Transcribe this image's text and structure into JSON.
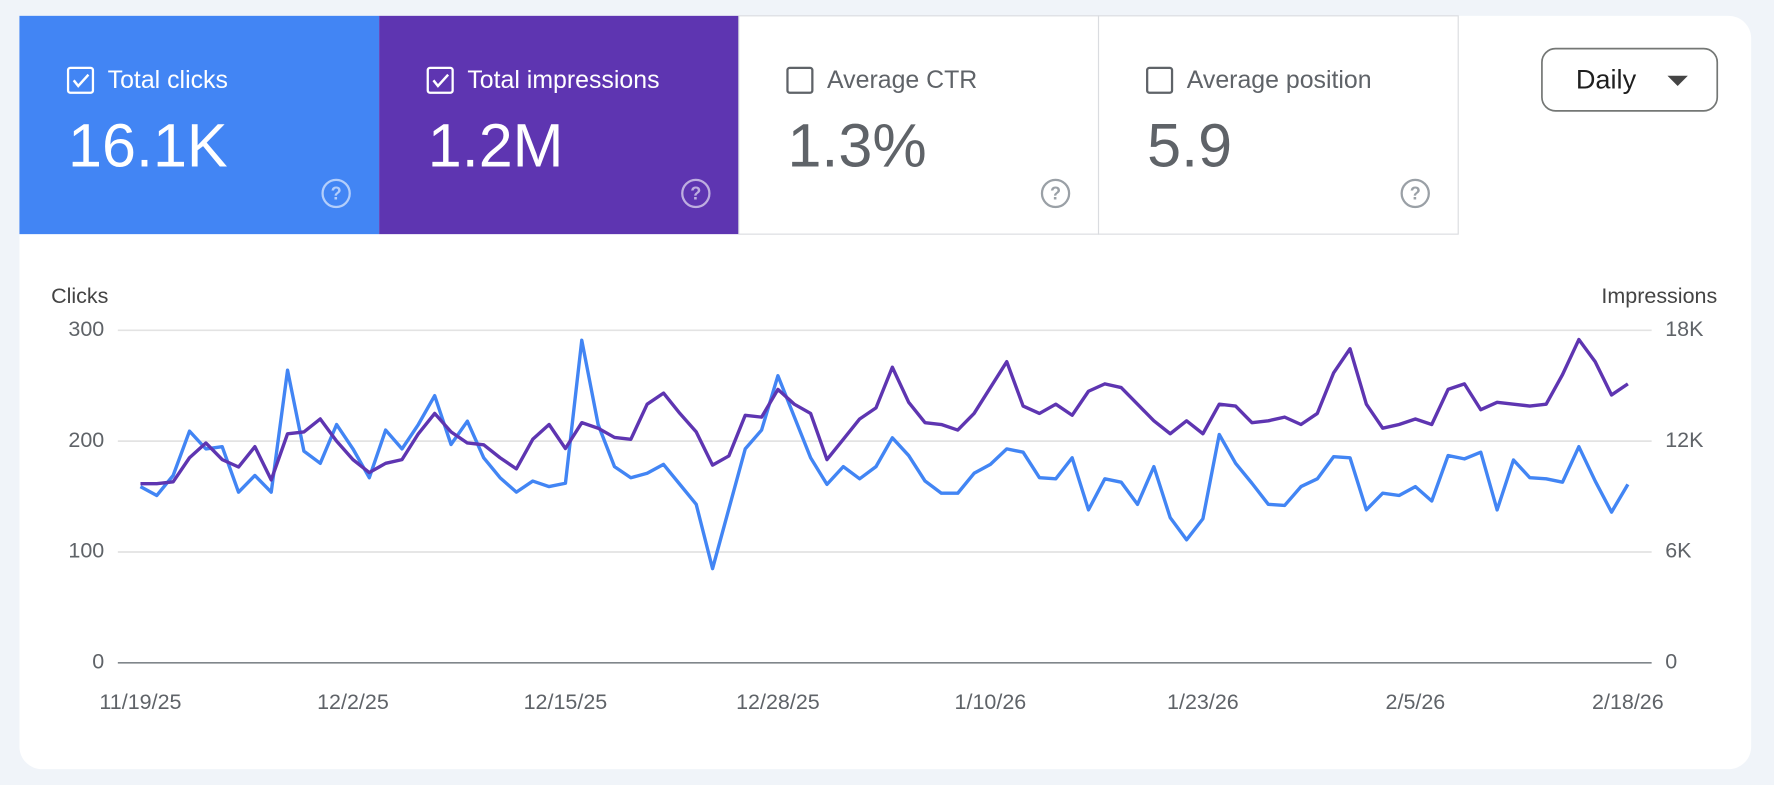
{
  "metrics": [
    {
      "label": "Total clicks",
      "value": "16.1K",
      "selected": true,
      "color": "#4285f4"
    },
    {
      "label": "Total impressions",
      "value": "1.2M",
      "selected": true,
      "color": "#5e35b1"
    },
    {
      "label": "Average CTR",
      "value": "1.3%",
      "selected": false,
      "color": "#ffffff"
    },
    {
      "label": "Average position",
      "value": "5.9",
      "selected": false,
      "color": "#ffffff"
    }
  ],
  "period": "Daily",
  "chart_data": {
    "type": "line",
    "ylabel": "Clicks",
    "y2label": "Impressions",
    "x": [
      "11/19/25",
      "11/20/25",
      "11/21/25",
      "11/22/25",
      "11/23/25",
      "11/24/25",
      "11/25/25",
      "11/26/25",
      "11/27/25",
      "11/28/25",
      "11/29/25",
      "11/30/25",
      "12/1/25",
      "12/2/25",
      "12/3/25",
      "12/4/25",
      "12/5/25",
      "12/6/25",
      "12/7/25",
      "12/8/25",
      "12/9/25",
      "12/10/25",
      "12/11/25",
      "12/12/25",
      "12/13/25",
      "12/14/25",
      "12/15/25",
      "12/16/25",
      "12/17/25",
      "12/18/25",
      "12/19/25",
      "12/20/25",
      "12/21/25",
      "12/22/25",
      "12/23/25",
      "12/24/25",
      "12/25/25",
      "12/26/25",
      "12/27/25",
      "12/28/25",
      "12/29/25",
      "12/30/25",
      "12/31/25",
      "1/1/26",
      "1/2/26",
      "1/3/26",
      "1/4/26",
      "1/5/26",
      "1/6/26",
      "1/7/26",
      "1/8/26",
      "1/9/26",
      "1/10/26",
      "1/11/26",
      "1/12/26",
      "1/13/26",
      "1/14/26",
      "1/15/26",
      "1/16/26",
      "1/17/26",
      "1/18/26",
      "1/19/26",
      "1/20/26",
      "1/21/26",
      "1/22/26",
      "1/23/26",
      "1/24/26",
      "1/25/26",
      "1/26/26",
      "1/27/26",
      "1/28/26",
      "1/29/26",
      "1/30/26",
      "1/31/26",
      "2/1/26",
      "2/2/26",
      "2/3/26",
      "2/4/26",
      "2/5/26",
      "2/6/26",
      "2/7/26",
      "2/8/26",
      "2/9/26",
      "2/10/26",
      "2/11/26",
      "2/12/26",
      "2/13/26",
      "2/14/26",
      "2/15/26",
      "2/16/26",
      "2/17/26",
      "2/18/26"
    ],
    "xticks": [
      "11/19/25",
      "12/2/25",
      "12/15/25",
      "12/28/25",
      "1/10/26",
      "1/23/26",
      "2/5/26",
      "2/18/26"
    ],
    "ylim": [
      0,
      300
    ],
    "yticks": [
      0,
      100,
      200,
      300
    ],
    "y2lim": [
      0,
      18000
    ],
    "y2ticks": [
      0,
      {
        "value": 6000,
        "label": "6K"
      },
      {
        "value": 12000,
        "label": "12K"
      },
      {
        "value": 18000,
        "label": "18K"
      }
    ],
    "grid": true,
    "series": [
      {
        "name": "Clicks",
        "color": "#4285f4",
        "values": [
          159,
          151,
          169,
          209,
          193,
          195,
          154,
          169,
          154,
          264,
          191,
          180,
          215,
          193,
          167,
          210,
          193,
          215,
          241,
          197,
          218,
          185,
          167,
          154,
          164,
          159,
          162,
          291,
          215,
          177,
          167,
          171,
          179,
          161,
          143,
          85,
          139,
          193,
          210,
          259,
          222,
          185,
          161,
          177,
          166,
          177,
          203,
          187,
          164,
          153,
          153,
          171,
          179,
          193,
          190,
          167,
          166,
          185,
          138,
          166,
          163,
          143,
          177,
          131,
          111,
          130,
          206,
          180,
          162,
          143,
          142,
          159,
          166,
          186,
          185,
          138,
          153,
          151,
          159,
          146,
          187,
          184,
          190,
          138,
          183,
          167,
          166,
          163,
          195,
          164,
          136,
          161
        ]
      },
      {
        "name": "Impressions",
        "color": "#5e35b1",
        "axis": "y2",
        "values": [
          9700,
          9700,
          9800,
          11100,
          11900,
          11000,
          10600,
          11700,
          9900,
          12400,
          12500,
          13200,
          12000,
          11000,
          10300,
          10800,
          11000,
          12400,
          13500,
          12500,
          11900,
          11800,
          11100,
          10500,
          12100,
          12900,
          11600,
          13000,
          12700,
          12200,
          12100,
          14000,
          14600,
          13500,
          12500,
          10700,
          11200,
          13400,
          13300,
          14800,
          14000,
          13500,
          11000,
          12100,
          13200,
          13800,
          16000,
          14100,
          13000,
          12900,
          12600,
          13500,
          14900,
          16300,
          13900,
          13500,
          14000,
          13400,
          14700,
          15100,
          14900,
          14000,
          13100,
          12400,
          13100,
          12400,
          14000,
          13900,
          13000,
          13100,
          13300,
          12900,
          13500,
          15700,
          17000,
          14000,
          12700,
          12900,
          13200,
          12900,
          14800,
          15100,
          13700,
          14100,
          14000,
          13900,
          14000,
          15600,
          17500,
          16300,
          14500,
          15100
        ]
      }
    ]
  }
}
